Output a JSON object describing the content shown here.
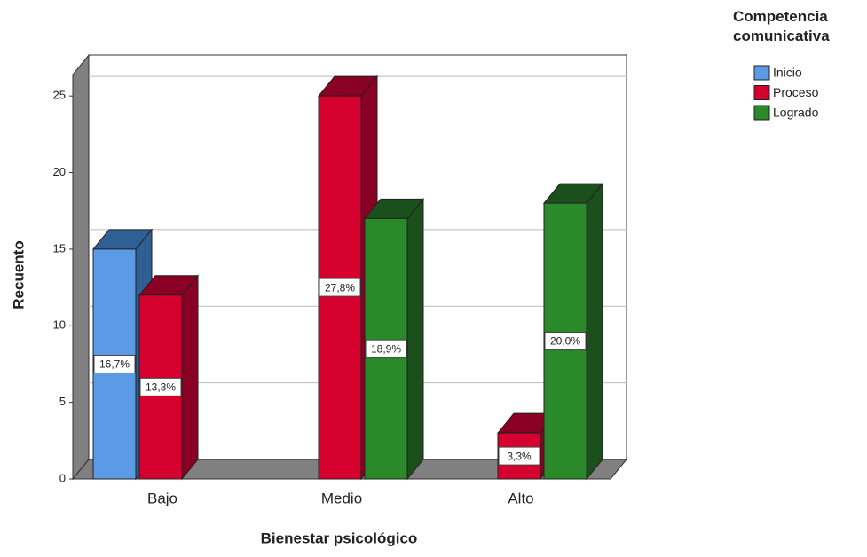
{
  "chart_data": {
    "type": "bar3d",
    "x_label": "Bienestar psicológico",
    "y_label": "Recuento",
    "legend_title": "Competencia comunicativa",
    "categories": [
      "Bajo",
      "Medio",
      "Alto"
    ],
    "series": [
      {
        "name": "Inicio",
        "color": "#5b9be6",
        "side_color": "#2f5f95",
        "values": [
          15,
          null,
          null
        ],
        "percent_labels": [
          "16,7%",
          null,
          null
        ]
      },
      {
        "name": "Proceso",
        "color": "#d6002e",
        "side_color": "#8a0024",
        "values": [
          12,
          25,
          3
        ],
        "percent_labels": [
          "13,3%",
          "27,8%",
          "3,3%"
        ]
      },
      {
        "name": "Logrado",
        "color": "#2a8a2a",
        "side_color": "#1b4f1b",
        "values": [
          null,
          17,
          18
        ],
        "percent_labels": [
          null,
          "18,9%",
          "20,0%"
        ]
      }
    ],
    "ylim": [
      0,
      26.4
    ],
    "yticks": [
      0,
      5,
      10,
      15,
      20,
      25
    ],
    "grid": true,
    "legend": "top-right"
  }
}
